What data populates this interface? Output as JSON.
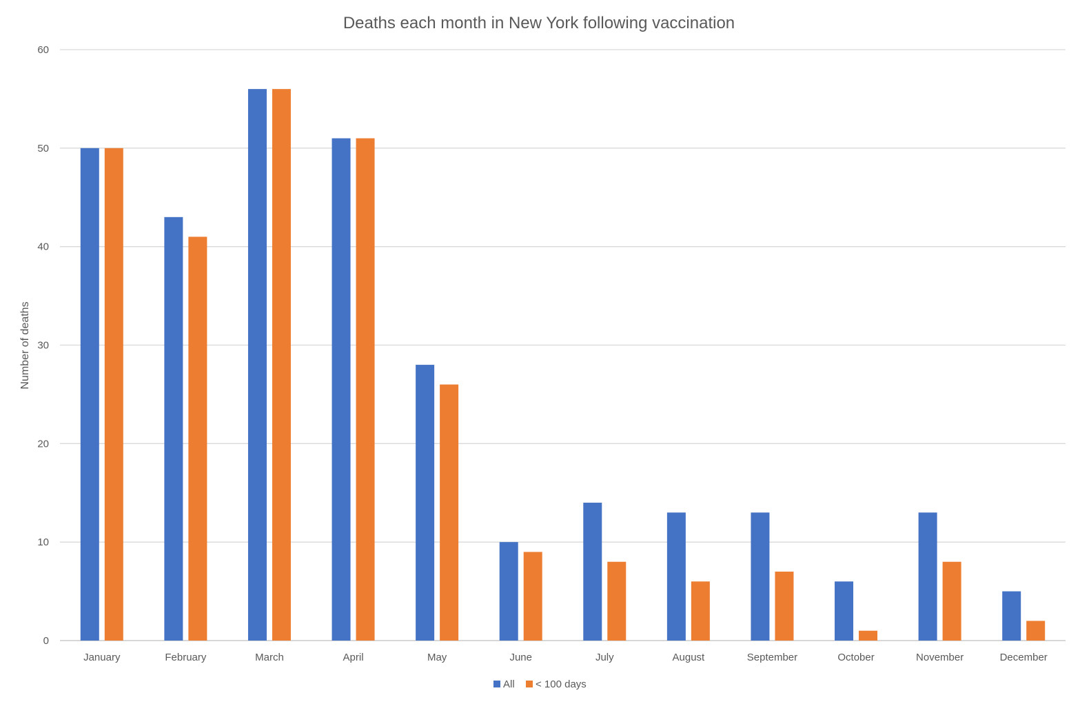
{
  "chart_data": {
    "type": "bar",
    "title": "Deaths each month in New York following vaccination",
    "xlabel": "",
    "ylabel": "Number of deaths",
    "ylim": [
      0,
      60
    ],
    "yticks": [
      0,
      10,
      20,
      30,
      40,
      50,
      60
    ],
    "grid": true,
    "legend_position": "bottom",
    "categories": [
      "January",
      "February",
      "March",
      "April",
      "May",
      "June",
      "July",
      "August",
      "September",
      "October",
      "November",
      "December"
    ],
    "series": [
      {
        "name": "All",
        "color": "#4472C4",
        "values": [
          50,
          43,
          56,
          51,
          28,
          10,
          14,
          13,
          13,
          6,
          13,
          5
        ]
      },
      {
        "name": "< 100 days",
        "color": "#ED7D31",
        "values": [
          50,
          41,
          56,
          51,
          26,
          9,
          8,
          6,
          7,
          1,
          8,
          2
        ]
      }
    ]
  }
}
